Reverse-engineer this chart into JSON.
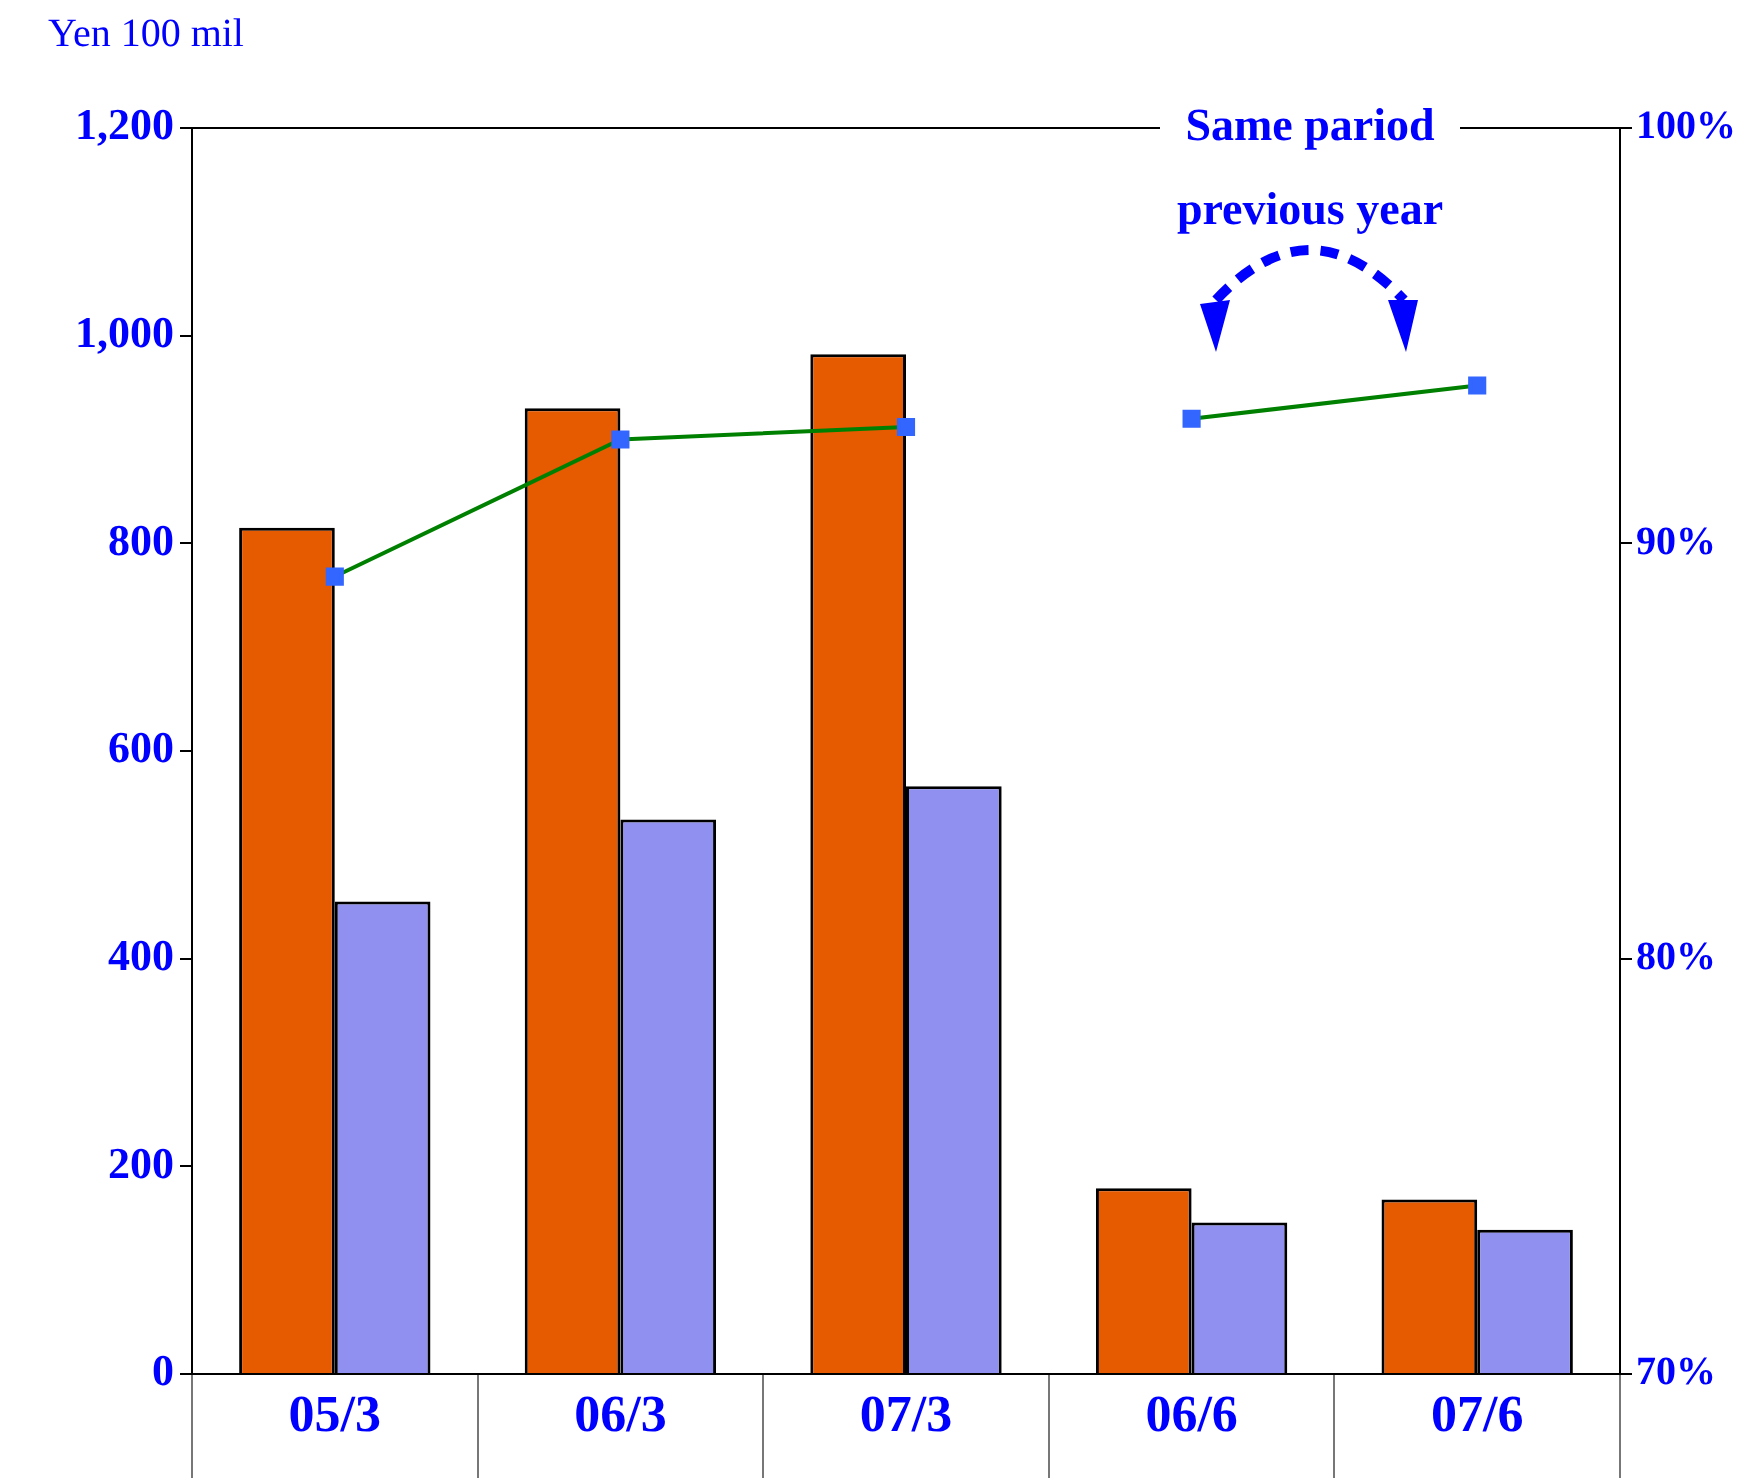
{
  "chart_data": {
    "type": "bar",
    "ylabel": "Yen 100 mil",
    "annotations": [
      "Same pariod previous year"
    ],
    "categories": [
      "05/3",
      "06/3",
      "07/3",
      "06/6",
      "07/6"
    ],
    "series": [
      {
        "color": "#e65a00",
        "values": [
          815,
          930,
          982,
          179,
          168
        ]
      },
      {
        "color": "#9090f0",
        "values": [
          455,
          534,
          566,
          146,
          139
        ]
      },
      {
        "type": "line",
        "axis": "y2",
        "color": "#008000",
        "values": [
          89.2,
          92.5,
          92.8,
          null,
          null
        ]
      },
      {
        "type": "line",
        "axis": "y2",
        "color": "#008000",
        "values": [
          null,
          null,
          null,
          93.0,
          93.8
        ]
      }
    ],
    "ylim": [
      0,
      1200
    ],
    "yticks": [
      0,
      200,
      400,
      600,
      800,
      {
        "value": 1000,
        "label": "1,000"
      },
      {
        "value": 1200,
        "label": "1,200"
      }
    ],
    "y2lim": [
      70,
      100
    ],
    "y2ticks": [
      {
        "value": 70,
        "label": "70%"
      },
      {
        "value": 80,
        "label": "80%"
      },
      {
        "value": 90,
        "label": "90%"
      },
      {
        "value": 100,
        "label": "100%"
      }
    ],
    "marker": "square",
    "grid": false,
    "legend": false
  }
}
